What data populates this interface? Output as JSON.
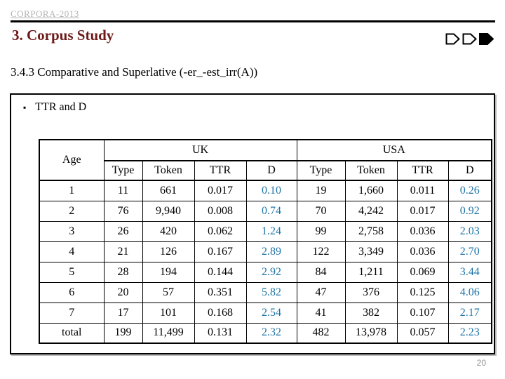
{
  "slide": {
    "watermark": "CORPORA-2013",
    "title": "3. Corpus Study",
    "subtitle": "3.4.3 Comparative and Superlative (-er_-est_irr(A))",
    "bullet": {
      "marker": "▪",
      "text": "TTR and D"
    },
    "page_number": "20"
  },
  "colors": {
    "title": "#6e1a1a",
    "d_value": "#1e74a6",
    "watermark": "#b3b3b3",
    "page_number": "#8f8f8f",
    "table_border": "#000000"
  },
  "chart_data": {
    "type": "table",
    "title": "TTR and D",
    "header": {
      "age": "Age",
      "groups": [
        {
          "label": "UK",
          "columns": [
            "Type",
            "Token",
            "TTR",
            "D"
          ]
        },
        {
          "label": "USA",
          "columns": [
            "Type",
            "Token",
            "TTR",
            "D"
          ]
        }
      ]
    },
    "rows": [
      [
        "1",
        "11",
        "661",
        "0.017",
        "0.10",
        "19",
        "1,660",
        "0.011",
        "0.26"
      ],
      [
        "2",
        "76",
        "9,940",
        "0.008",
        "0.74",
        "70",
        "4,242",
        "0.017",
        "0.92"
      ],
      [
        "3",
        "26",
        "420",
        "0.062",
        "1.24",
        "99",
        "2,758",
        "0.036",
        "2.03"
      ],
      [
        "4",
        "21",
        "126",
        "0.167",
        "2.89",
        "122",
        "3,349",
        "0.036",
        "2.70"
      ],
      [
        "5",
        "28",
        "194",
        "0.144",
        "2.92",
        "84",
        "1,211",
        "0.069",
        "3.44"
      ],
      [
        "6",
        "20",
        "57",
        "0.351",
        "5.82",
        "47",
        "376",
        "0.125",
        "4.06"
      ],
      [
        "7",
        "17",
        "101",
        "0.168",
        "2.54",
        "41",
        "382",
        "0.107",
        "2.17"
      ],
      [
        "total",
        "199",
        "11,499",
        "0.131",
        "2.32",
        "482",
        "13,978",
        "0.057",
        "2.23"
      ]
    ],
    "d_column_indexes": [
      4,
      8
    ]
  }
}
